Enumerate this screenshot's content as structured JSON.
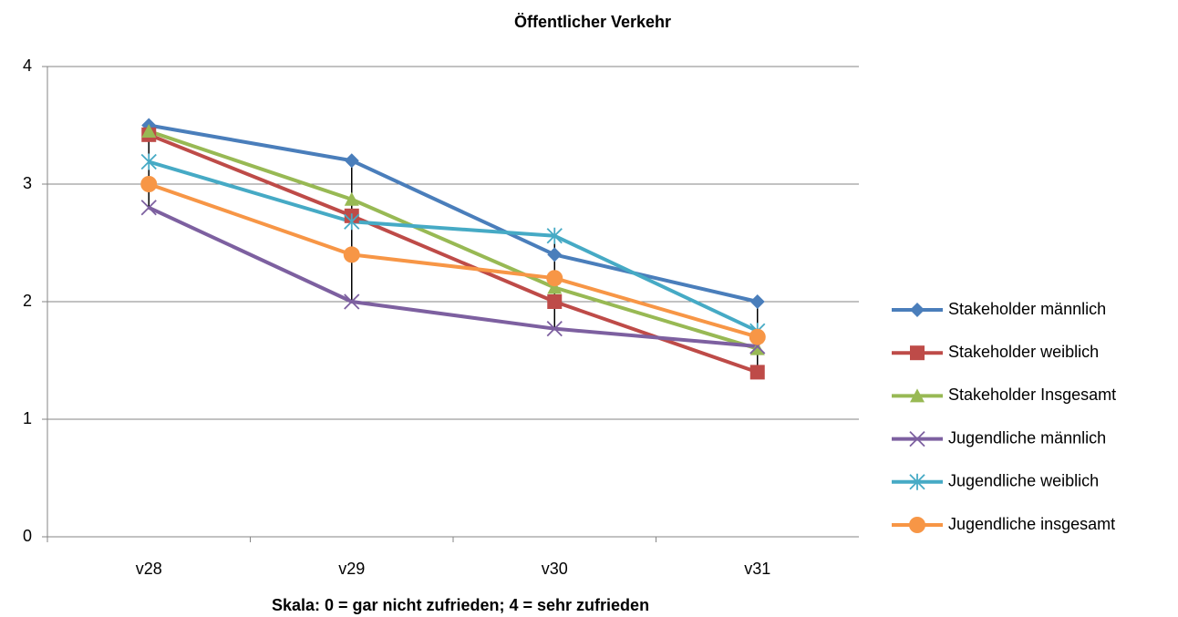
{
  "chart_data": {
    "type": "line",
    "title": "Öffentlicher Verkehr",
    "x_label": "Skala: 0 = gar nicht zufrieden; 4 = sehr zufrieden",
    "categories": [
      "v28",
      "v29",
      "v30",
      "v31"
    ],
    "ylim": [
      0,
      4
    ],
    "yticks": [
      0,
      1,
      2,
      3,
      4
    ],
    "grid": true,
    "high_low_lines": true,
    "legend": "right",
    "series": [
      {
        "name": "Stakeholder männlich",
        "color": "#4a7ebb",
        "marker": "diamond",
        "values": [
          3.5,
          3.2,
          2.4,
          2.0
        ]
      },
      {
        "name": "Stakeholder weiblich",
        "color": "#be4b48",
        "marker": "square",
        "values": [
          3.42,
          2.73,
          2.0,
          1.4
        ]
      },
      {
        "name": "Stakeholder Insgesamt",
        "color": "#98b954",
        "marker": "triangle",
        "values": [
          3.45,
          2.87,
          2.12,
          1.6
        ]
      },
      {
        "name": "Jugendliche männlich",
        "color": "#7d60a0",
        "marker": "x",
        "values": [
          2.8,
          2.0,
          1.77,
          1.62
        ]
      },
      {
        "name": "Jugendliche weiblich",
        "color": "#46aac5",
        "marker": "star",
        "values": [
          3.19,
          2.68,
          2.56,
          1.75
        ]
      },
      {
        "name": "Jugendliche insgesamt",
        "color": "#f79646",
        "marker": "circle",
        "values": [
          3.0,
          2.4,
          2.2,
          1.7
        ]
      }
    ]
  }
}
